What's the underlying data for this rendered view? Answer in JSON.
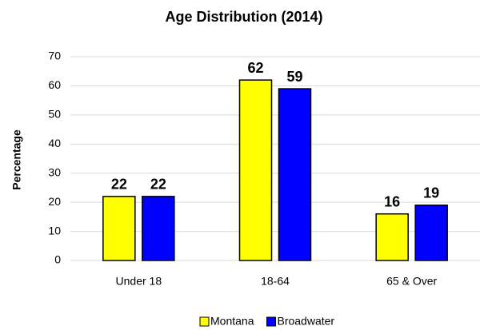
{
  "chart_data": {
    "type": "bar",
    "title": "Age Distribution (2014)",
    "y_label": "Percentage",
    "categories": [
      "Under 18",
      "18-64",
      "65 & Over"
    ],
    "series": [
      {
        "name": "Montana",
        "color": "#ffff00",
        "values": [
          22,
          62,
          16
        ]
      },
      {
        "name": "Broadwater",
        "color": "#0000ff",
        "values": [
          22,
          59,
          19
        ]
      }
    ],
    "ylim": [
      0,
      70
    ],
    "yticks": [
      0,
      10,
      20,
      30,
      40,
      50,
      60,
      70
    ],
    "grid": true,
    "legend": "bottom"
  }
}
